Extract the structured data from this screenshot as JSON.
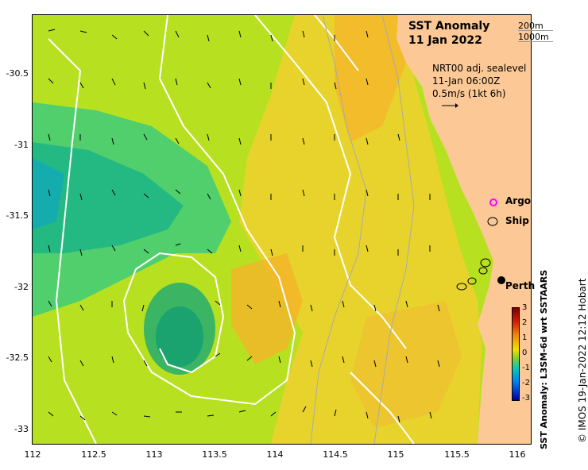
{
  "title_line1": "SST Anomaly",
  "title_line2": "11 Jan 2022",
  "contour_legend": [
    "200m",
    "1000m"
  ],
  "info": {
    "line1": "NRT00 adj. sealevel",
    "line2": "11-Jan 06:00Z",
    "line3": "0.5m/s (1kt 6h)"
  },
  "obs_legend": {
    "argo": "Argo",
    "ship": "Ship",
    "argo_color": "#ff00ff"
  },
  "place_label": "Perth",
  "colorbar": {
    "ticks": [
      "3",
      "2",
      "1",
      "0",
      "-1",
      "-2",
      "-3"
    ],
    "label": "SST Anomaly: L3SM-6d wrt SSTAARS"
  },
  "credit": "© IMOS 19-Jan-2022 12:12 Hobart",
  "axes": {
    "x_ticks": [
      "112",
      "112.5",
      "113",
      "113.5",
      "114",
      "114.5",
      "115",
      "115.5",
      "116"
    ],
    "y_ticks": [
      "-30.5",
      "-31",
      "-31.5",
      "-32",
      "-32.5",
      "-33"
    ]
  },
  "colors": {
    "land": "#fbc896",
    "warm": "#f5b429",
    "neutral": "#b7e020",
    "cool": "#19b38a",
    "contour": "#ffffff"
  }
}
